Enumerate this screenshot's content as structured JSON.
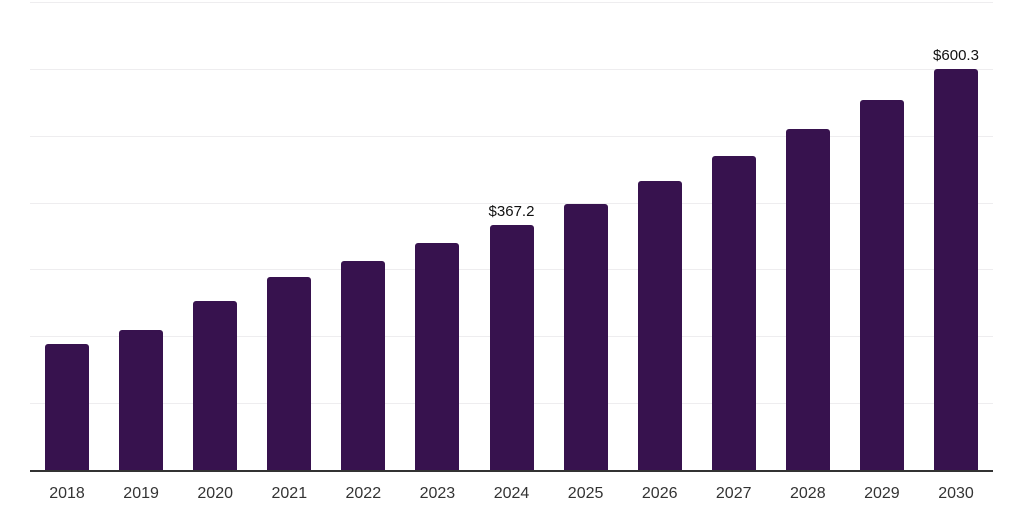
{
  "chart_data": {
    "type": "bar",
    "title": "",
    "xlabel": "",
    "ylabel": "",
    "categories": [
      "2018",
      "2019",
      "2020",
      "2021",
      "2022",
      "2023",
      "2024",
      "2025",
      "2026",
      "2027",
      "2028",
      "2029",
      "2030"
    ],
    "values": [
      188.5,
      209.4,
      252.8,
      288.7,
      312.6,
      339.5,
      367.2,
      398.6,
      432.7,
      469.7,
      509.8,
      553.4,
      600.3
    ],
    "data_labels": [
      {
        "category": "2024",
        "text": "$367.2"
      },
      {
        "category": "2030",
        "text": "$600.3"
      }
    ],
    "ylim": [
      0,
      700
    ],
    "gridline_step": 100,
    "grid": "on",
    "legend": "none",
    "y_axis_tick_labels": "hidden"
  },
  "style": {
    "background_color": "#ffffff",
    "bar_color": "#37124E",
    "gridline_color": "#eeedef",
    "axis_line_color": "#333333",
    "data_label_color": "#111111",
    "tick_label_color": "#333333"
  }
}
